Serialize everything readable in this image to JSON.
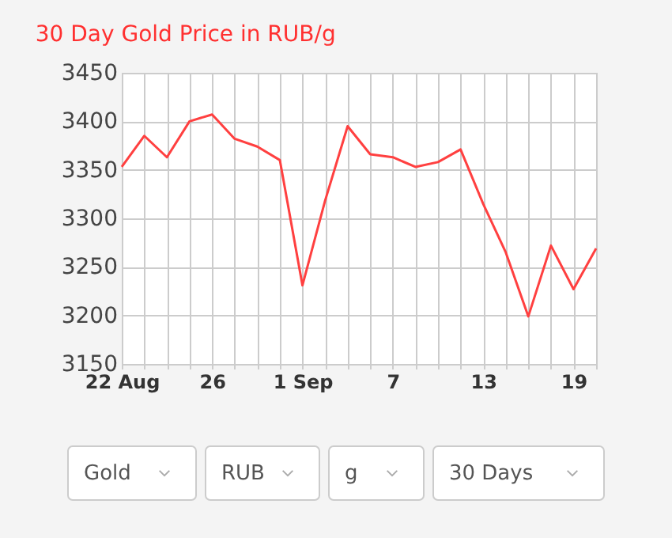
{
  "chart_data": {
    "type": "line",
    "title": "30 Day Gold Price in RUB/g",
    "categories": [
      "22 Aug",
      null,
      null,
      null,
      "26",
      null,
      null,
      null,
      "1 Sep",
      null,
      null,
      null,
      "7",
      null,
      null,
      null,
      "13",
      null,
      null,
      null,
      "19",
      null
    ],
    "series": [
      {
        "color": "#ff4040",
        "values": [
          3353,
          3385,
          3363,
          3400,
          3407,
          3382,
          3374,
          3360,
          3231,
          3318,
          3395,
          3366,
          3363,
          3353,
          3358,
          3371,
          3315,
          3265,
          3199,
          3272,
          3227,
          3269
        ]
      }
    ],
    "ylim": [
      3150,
      3450
    ],
    "yticks": [
      3150,
      3200,
      3250,
      3300,
      3350,
      3400,
      3450
    ],
    "grid": true,
    "marker": "none",
    "line_style": "solid",
    "legend": false,
    "annotations": [
      "Gold",
      "RUB",
      "g",
      "30 Days"
    ]
  }
}
